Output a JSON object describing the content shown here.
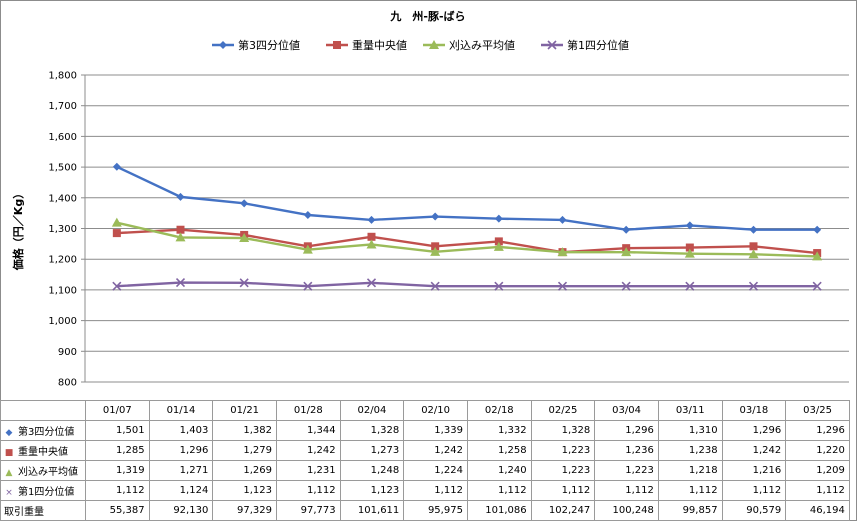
{
  "chart_data": {
    "type": "line",
    "title": "九　州-豚-ばら",
    "ylabel": "価格（円／Kg）",
    "ylim": [
      800,
      1800
    ],
    "ystep": 100,
    "ytick_labels": [
      "800",
      "900",
      "1,000",
      "1,100",
      "1,200",
      "1,300",
      "1,400",
      "1,500",
      "1,600",
      "1,700",
      "1,800"
    ],
    "grid": true,
    "legend_position": "top",
    "categories": [
      "01/07",
      "01/14",
      "01/21",
      "01/28",
      "02/04",
      "02/10",
      "02/18",
      "02/25",
      "03/04",
      "03/11",
      "03/18",
      "03/25"
    ],
    "series": [
      {
        "name": "第3四分位値",
        "color": "#4472C4",
        "marker": "diamond",
        "glyph": "◆",
        "values": [
          1501,
          1403,
          1382,
          1344,
          1328,
          1339,
          1332,
          1328,
          1296,
          1310,
          1296,
          1296
        ],
        "labels": [
          "1,501",
          "1,403",
          "1,382",
          "1,344",
          "1,328",
          "1,339",
          "1,332",
          "1,328",
          "1,296",
          "1,310",
          "1,296",
          "1,296"
        ]
      },
      {
        "name": "重量中央値",
        "color": "#C0504D",
        "marker": "square",
        "glyph": "■",
        "values": [
          1285,
          1296,
          1279,
          1242,
          1273,
          1242,
          1258,
          1223,
          1236,
          1238,
          1242,
          1220
        ],
        "labels": [
          "1,285",
          "1,296",
          "1,279",
          "1,242",
          "1,273",
          "1,242",
          "1,258",
          "1,223",
          "1,236",
          "1,238",
          "1,242",
          "1,220"
        ]
      },
      {
        "name": "刈込み平均値",
        "color": "#9BBB59",
        "marker": "triangle",
        "glyph": "▲",
        "values": [
          1319,
          1271,
          1269,
          1231,
          1248,
          1224,
          1240,
          1223,
          1223,
          1218,
          1216,
          1209
        ],
        "labels": [
          "1,319",
          "1,271",
          "1,269",
          "1,231",
          "1,248",
          "1,224",
          "1,240",
          "1,223",
          "1,223",
          "1,218",
          "1,216",
          "1,209"
        ]
      },
      {
        "name": "第1四分位値",
        "color": "#8064A2",
        "marker": "x",
        "glyph": "×",
        "values": [
          1112,
          1124,
          1123,
          1112,
          1123,
          1112,
          1112,
          1112,
          1112,
          1112,
          1112,
          1112
        ],
        "labels": [
          "1,112",
          "1,124",
          "1,123",
          "1,112",
          "1,123",
          "1,112",
          "1,112",
          "1,112",
          "1,112",
          "1,112",
          "1,112",
          "1,112"
        ]
      }
    ],
    "extra_row": {
      "name": "取引重量",
      "values": [
        55387,
        92130,
        97329,
        97773,
        101611,
        95975,
        101086,
        102247,
        100248,
        99857,
        90579,
        46194
      ],
      "labels": [
        "55,387",
        "92,130",
        "97,329",
        "97,773",
        "101,611",
        "95,975",
        "101,086",
        "102,247",
        "100,248",
        "99,857",
        "90,579",
        "46,194"
      ]
    }
  }
}
